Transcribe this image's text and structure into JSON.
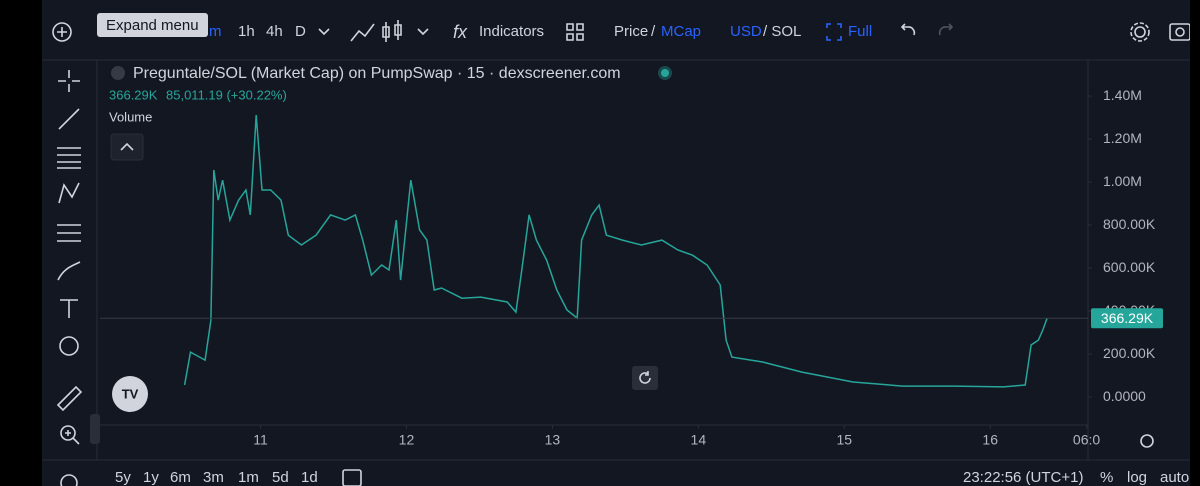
{
  "toolbar": {
    "tooltip": "Expand menu",
    "intervals": [
      "m",
      "1h",
      "4h",
      "D"
    ],
    "indicators": "Indicators",
    "price": "Price",
    "price_sep": "/",
    "mcap": "MCap",
    "usd": "USD",
    "currency_sep": "/ SOL",
    "full": "Full"
  },
  "legend": {
    "title": "Preguntale/SOL (Market Cap) on PumpSwap · 15 · dexscreener.com",
    "last": "366.29K",
    "change": "85,011.19 (+30.22%)",
    "volume": "Volume"
  },
  "bottom": {
    "ranges": [
      "5y",
      "1y",
      "6m",
      "3m",
      "1m",
      "5d",
      "1d"
    ],
    "clock": "23:22:56 (UTC+1)",
    "percent": "%",
    "log": "log",
    "auto": "auto"
  },
  "chart_data": {
    "type": "line",
    "color": "#26a69a",
    "x": [
      10.48,
      10.52,
      10.62,
      10.66,
      10.68,
      10.71,
      10.74,
      10.79,
      10.85,
      10.9,
      10.93,
      10.97,
      11.01,
      11.07,
      11.14,
      11.19,
      11.28,
      11.38,
      11.48,
      11.58,
      11.65,
      11.7,
      11.76,
      11.83,
      11.88,
      11.93,
      11.96,
      12.03,
      12.09,
      12.14,
      12.19,
      12.24,
      12.38,
      12.51,
      12.69,
      12.75,
      12.79,
      12.84,
      12.89,
      12.96,
      13.03,
      13.1,
      13.17,
      13.2,
      13.27,
      13.32,
      13.37,
      13.48,
      13.61,
      13.75,
      13.86,
      13.96,
      14.06,
      14.15,
      14.19,
      14.23,
      14.44,
      14.71,
      15.06,
      15.4,
      15.75,
      16.09,
      16.24,
      16.28,
      16.33,
      16.36,
      16.39
    ],
    "series": [
      {
        "name": "Market Cap",
        "color": "#26a69a",
        "values": [
          56000,
          209000,
          172000,
          358000,
          1056000,
          916000,
          1009000,
          823000,
          916000,
          963000,
          847000,
          1312000,
          963000,
          963000,
          916000,
          753000,
          707000,
          753000,
          847000,
          823000,
          847000,
          730000,
          567000,
          614000,
          591000,
          823000,
          544000,
          1009000,
          777000,
          730000,
          498000,
          507000,
          460000,
          465000,
          442000,
          395000,
          591000,
          847000,
          730000,
          637000,
          498000,
          405000,
          367000,
          730000,
          847000,
          893000,
          753000,
          730000,
          707000,
          730000,
          684000,
          660000,
          614000,
          521000,
          265000,
          186000,
          163000,
          116000,
          70000,
          51000,
          51000,
          47000,
          56000,
          242000,
          265000,
          312000,
          366290
        ]
      }
    ],
    "xlim": [
      9.9,
      16.67
    ],
    "xticks": [
      11,
      12,
      13,
      14,
      15,
      16,
      {
        "value": 16.66,
        "label": "06:0"
      }
    ],
    "ylim": [
      -130000,
      1577000
    ],
    "yticks": [
      {
        "value": 0,
        "label": "0.0000"
      },
      {
        "value": 200000,
        "label": "200.00K"
      },
      {
        "value": 400000,
        "label": "400.00K"
      },
      {
        "value": 600000,
        "label": "600.00K"
      },
      {
        "value": 800000,
        "label": "800.00K"
      },
      {
        "value": 1000000,
        "label": "1.00M"
      },
      {
        "value": 1200000,
        "label": "1.20M"
      },
      {
        "value": 1400000,
        "label": "1.40M"
      }
    ],
    "grid": false
  }
}
